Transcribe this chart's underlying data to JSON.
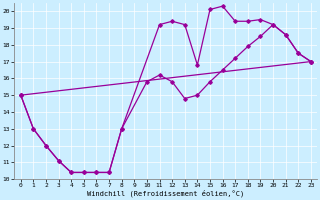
{
  "xlabel": "Windchill (Refroidissement éolien,°C)",
  "bg_color": "#cceeff",
  "line_color": "#990099",
  "xlim": [
    -0.5,
    23.5
  ],
  "ylim": [
    10,
    20.5
  ],
  "xticks": [
    0,
    1,
    2,
    3,
    4,
    5,
    6,
    7,
    8,
    9,
    10,
    11,
    12,
    13,
    14,
    15,
    16,
    17,
    18,
    19,
    20,
    21,
    22,
    23
  ],
  "yticks": [
    10,
    11,
    12,
    13,
    14,
    15,
    16,
    17,
    18,
    19,
    20
  ],
  "series1_x": [
    0,
    1,
    2,
    3,
    4,
    5,
    6,
    7,
    8,
    11,
    12,
    13,
    14,
    15,
    16,
    17,
    18,
    19,
    20,
    21,
    22,
    23
  ],
  "series1_y": [
    15,
    13,
    12,
    11.1,
    10.4,
    10.4,
    10.4,
    10.4,
    13.0,
    19.2,
    19.4,
    19.2,
    16.8,
    20.1,
    20.3,
    19.4,
    19.4,
    19.5,
    19.2,
    18.6,
    17.5,
    17.0
  ],
  "series2_x": [
    0,
    1,
    2,
    3,
    4,
    5,
    6,
    7,
    8,
    10,
    11,
    12,
    13,
    14,
    15,
    16,
    17,
    18,
    19,
    20,
    21,
    22,
    23
  ],
  "series2_y": [
    15,
    13,
    12,
    11.1,
    10.4,
    10.4,
    10.4,
    10.4,
    13.0,
    15.8,
    16.2,
    15.8,
    14.8,
    15.0,
    15.8,
    16.5,
    17.2,
    17.9,
    18.5,
    19.2,
    18.6,
    17.5,
    17.0
  ],
  "series3_x": [
    0,
    23
  ],
  "series3_y": [
    15,
    17.0
  ]
}
